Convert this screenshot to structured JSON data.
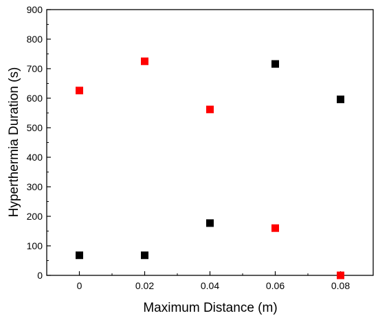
{
  "chart_data": {
    "type": "scatter",
    "title": "",
    "xlabel": "Maximum Distance (m)",
    "ylabel": "Hyperthermia Duration (s)",
    "xlim": [
      -0.01,
      0.09
    ],
    "ylim": [
      0,
      900
    ],
    "x_ticks": [
      0,
      0.02,
      0.04,
      0.06,
      0.08
    ],
    "x_tick_labels": [
      "0",
      "0.02",
      "0.04",
      "0.06",
      "0.08"
    ],
    "y_ticks": [
      0,
      100,
      200,
      300,
      400,
      500,
      600,
      700,
      800,
      900
    ],
    "y_tick_labels": [
      "0",
      "100",
      "200",
      "300",
      "400",
      "500",
      "600",
      "700",
      "800",
      "900"
    ],
    "grid": false,
    "legend": "none",
    "series": [
      {
        "color": "#000000",
        "marker": "square",
        "points": [
          {
            "x": 0,
            "y": 68
          },
          {
            "x": 0.02,
            "y": 68
          },
          {
            "x": 0.04,
            "y": 177
          },
          {
            "x": 0.06,
            "y": 716
          },
          {
            "x": 0.08,
            "y": 596
          }
        ]
      },
      {
        "color": "#ff0000",
        "marker": "square",
        "points": [
          {
            "x": 0,
            "y": 626
          },
          {
            "x": 0.02,
            "y": 725
          },
          {
            "x": 0.04,
            "y": 562
          },
          {
            "x": 0.06,
            "y": 160
          },
          {
            "x": 0.08,
            "y": 0
          }
        ]
      }
    ]
  }
}
